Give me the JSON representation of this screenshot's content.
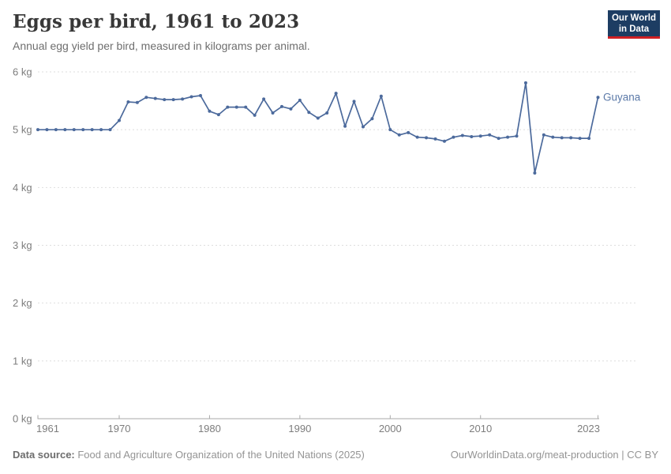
{
  "header": {
    "title": "Eggs per bird, 1961 to 2023",
    "subtitle": "Annual egg yield per bird, measured in kilograms per animal."
  },
  "logo": {
    "line1": "Our World",
    "line2": "in Data",
    "bg_color": "#1d3d63",
    "bar_color": "#cf2024"
  },
  "chart_data": {
    "type": "line",
    "title": "Eggs per bird, 1961 to 2023",
    "xlabel": "",
    "ylabel": "kg",
    "xlim": [
      1961,
      2023
    ],
    "ylim": [
      0,
      6
    ],
    "x_ticks": [
      1961,
      1970,
      1980,
      1990,
      2000,
      2010,
      2023
    ],
    "y_ticks": [
      0,
      1,
      2,
      3,
      4,
      5,
      6
    ],
    "y_tick_suffix": " kg",
    "grid": "horizontal-dashed",
    "legend": "end-of-line-label",
    "series": [
      {
        "name": "Guyana",
        "color": "#4c6a9c",
        "label_color": "#5b79a8",
        "x": [
          1961,
          1962,
          1963,
          1964,
          1965,
          1966,
          1967,
          1968,
          1969,
          1970,
          1971,
          1972,
          1973,
          1974,
          1975,
          1976,
          1977,
          1978,
          1979,
          1980,
          1981,
          1982,
          1983,
          1984,
          1985,
          1986,
          1987,
          1988,
          1989,
          1990,
          1991,
          1992,
          1993,
          1994,
          1995,
          1996,
          1997,
          1998,
          1999,
          2000,
          2001,
          2002,
          2003,
          2004,
          2005,
          2006,
          2007,
          2008,
          2009,
          2010,
          2011,
          2012,
          2013,
          2014,
          2015,
          2016,
          2017,
          2018,
          2019,
          2020,
          2021,
          2022,
          2023
        ],
        "values": [
          5.0,
          5.0,
          5.0,
          5.0,
          5.0,
          5.0,
          5.0,
          5.0,
          5.0,
          5.16,
          5.48,
          5.47,
          5.56,
          5.54,
          5.52,
          5.52,
          5.53,
          5.57,
          5.59,
          5.32,
          5.26,
          5.39,
          5.39,
          5.39,
          5.25,
          5.53,
          5.29,
          5.4,
          5.36,
          5.51,
          5.3,
          5.2,
          5.29,
          5.63,
          5.06,
          5.49,
          5.05,
          5.19,
          5.58,
          5.0,
          4.91,
          4.95,
          4.87,
          4.86,
          4.84,
          4.8,
          4.87,
          4.9,
          4.88,
          4.89,
          4.91,
          4.85,
          4.87,
          4.89,
          5.81,
          4.25,
          4.91,
          4.87,
          4.86,
          4.86,
          4.85,
          4.85,
          5.56
        ]
      }
    ]
  },
  "styles": {
    "grid_color": "#dedede",
    "axis_color": "#a9a9a9",
    "tick_label_color": "#7d7d7d"
  },
  "footer": {
    "source_label": "Data source:",
    "source_text": " Food and Agriculture Organization of the United Nations (2025)",
    "link_text": "OurWorldinData.org/meat-production | CC BY"
  }
}
